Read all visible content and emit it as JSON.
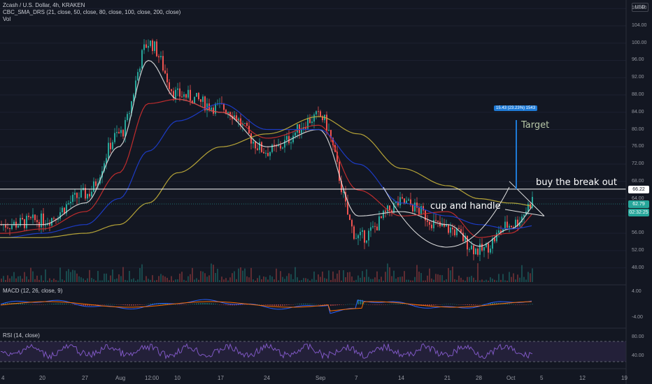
{
  "header": {
    "symbol_line": "Zcash / U.S. Dollar, 4h, KRAKEN",
    "indicator_line": "CBC_SMA_DRS (21, close, 50, close, 80, close, 100, close, 200, close)",
    "volume_line": "Vol",
    "currency": "USD"
  },
  "price_axis": {
    "ticks": [
      "108.00",
      "104.00",
      "100.00",
      "96.00",
      "92.00",
      "88.00",
      "84.00",
      "80.00",
      "76.00",
      "72.00",
      "68.00",
      "64.00",
      "60.00",
      "56.00",
      "52.00",
      "48.00"
    ],
    "tags": [
      {
        "text": "66.22",
        "color": "#ffffff",
        "textcolor": "#131722"
      },
      {
        "text": "62.79",
        "color": "#26a69a",
        "textcolor": "#ffffff"
      },
      {
        "text": "02:32:25",
        "color": "#26a69a",
        "textcolor": "#ffffff"
      }
    ]
  },
  "macd": {
    "label": "MACD (12, 26, close, 9)",
    "ticks": [
      "4.00",
      "-4.00"
    ]
  },
  "rsi": {
    "label": "RSI (14, close)",
    "ticks": [
      "80.00",
      "40.00"
    ]
  },
  "time_axis": [
    "4",
    "20",
    "27",
    "Aug",
    "12:00",
    "10",
    "17",
    "24",
    "Sep",
    "7",
    "14",
    "21",
    "28",
    "Oct",
    "5",
    "12",
    "19"
  ],
  "annotations": {
    "cup_handle": "cup and handle",
    "breakout": "buy the break out",
    "target": "Target",
    "target_callout": "15.43 (23.23%) 1543"
  },
  "colors": {
    "background": "#131722",
    "up": "#26a69a",
    "down": "#ef5350",
    "sma21": "#e0e0e0",
    "sma50": "#d32f2f",
    "sma80": "#8e24aa",
    "sma100": "#1e3fd6",
    "sma200": "#c8b23a",
    "target_line": "#1e7ad6"
  },
  "chart_data": {
    "type": "line",
    "title": "Zcash / U.S. Dollar, 4h, KRAKEN",
    "xlabel": "",
    "ylabel": "",
    "ylim": [
      46,
      109
    ],
    "categories": [
      "4",
      "20",
      "27",
      "Aug",
      "12:00",
      "10",
      "17",
      "24",
      "Sep",
      "7",
      "14",
      "21",
      "28",
      "Oct",
      "5",
      "12",
      "19"
    ],
    "series": [
      {
        "name": "Price (close, approx.)",
        "values": [
          58,
          59,
          65,
          79,
          100,
          88,
          85,
          75,
          83,
          55,
          63,
          57,
          52,
          58,
          66,
          63,
          null
        ]
      },
      {
        "name": "SMA 21 (approx.)",
        "values": [
          58,
          58,
          63,
          76,
          96,
          87,
          84,
          76,
          80,
          60,
          61,
          58,
          53,
          57,
          64,
          63,
          null
        ]
      },
      {
        "name": "SMA 50 (approx.)",
        "values": [
          56,
          57,
          61,
          70,
          86,
          87,
          84,
          78,
          81,
          66,
          60,
          61,
          55,
          56,
          62,
          61,
          null
        ]
      },
      {
        "name": "SMA 100 (approx.)",
        "values": [
          55,
          56,
          58,
          64,
          75,
          82,
          86,
          80,
          80,
          72,
          63,
          60,
          58,
          57,
          58,
          58,
          null
        ]
      },
      {
        "name": "SMA 200 (approx.)",
        "values": [
          55,
          55,
          56,
          58,
          63,
          70,
          76,
          79,
          83,
          79,
          71,
          67,
          64,
          63,
          62,
          61,
          null
        ]
      }
    ],
    "levels": [
      {
        "label": "breakout",
        "value": 66.22
      },
      {
        "label": "last",
        "value": 62.79
      }
    ],
    "price_tags": [
      "66.22",
      "62.79"
    ],
    "target": {
      "change": 15.43,
      "percent": 23.23
    },
    "macd": {
      "range": [
        -4,
        4
      ]
    },
    "rsi": {
      "range": [
        40,
        80
      ]
    }
  }
}
